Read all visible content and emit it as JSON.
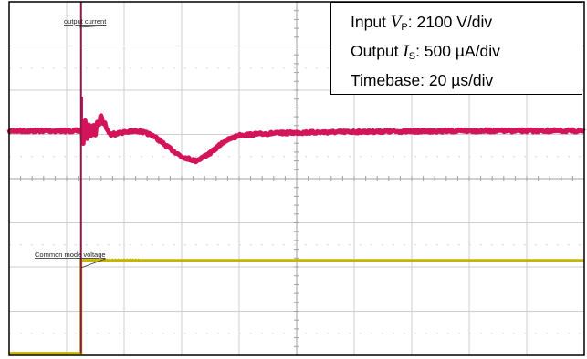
{
  "chart_data": {
    "type": "line",
    "divisions": {
      "x": 10,
      "y": 8
    },
    "grid": true,
    "annotations": [
      {
        "text": "output current",
        "target_series": 0
      },
      {
        "text": "Common mode voltage",
        "target_series": 1
      }
    ],
    "legend_box": {
      "placement": "top-right",
      "lines": [
        {
          "prefix": "Input ",
          "symbol": "V",
          "subscript": "P",
          "suffix": ": 2100 V/div"
        },
        {
          "prefix": "Output ",
          "symbol": "I",
          "subscript": "S",
          "suffix": ": 500 µA/div"
        },
        {
          "prefix": "",
          "symbol": "",
          "subscript": "",
          "suffix": "Timebase: 20 µs/div"
        }
      ]
    },
    "series": [
      {
        "color": "#d4145a",
        "unit_note": "output current, divisions from top",
        "x": [
          0,
          1.5,
          1.6,
          1.75,
          2.0,
          2.25,
          2.5,
          2.75,
          3.0,
          3.25,
          3.5,
          3.75,
          4.0,
          4.5,
          5.0,
          6.0,
          7.0,
          8.0,
          9.0,
          10.0
        ],
        "y": [
          2.92,
          2.92,
          2.6,
          3.0,
          2.95,
          2.92,
          3.02,
          3.28,
          3.5,
          3.6,
          3.42,
          3.15,
          3.02,
          2.98,
          2.96,
          2.94,
          2.93,
          2.92,
          2.92,
          2.92
        ]
      },
      {
        "color": "#c8b400",
        "unit_note": "common mode voltage, divisions from top",
        "x": [
          0,
          1.25,
          1.25,
          10.0
        ],
        "y": [
          7.95,
          7.95,
          5.85,
          5.85
        ]
      }
    ],
    "step_edge": {
      "x": 1.25,
      "color": "#8b1a4a"
    }
  }
}
